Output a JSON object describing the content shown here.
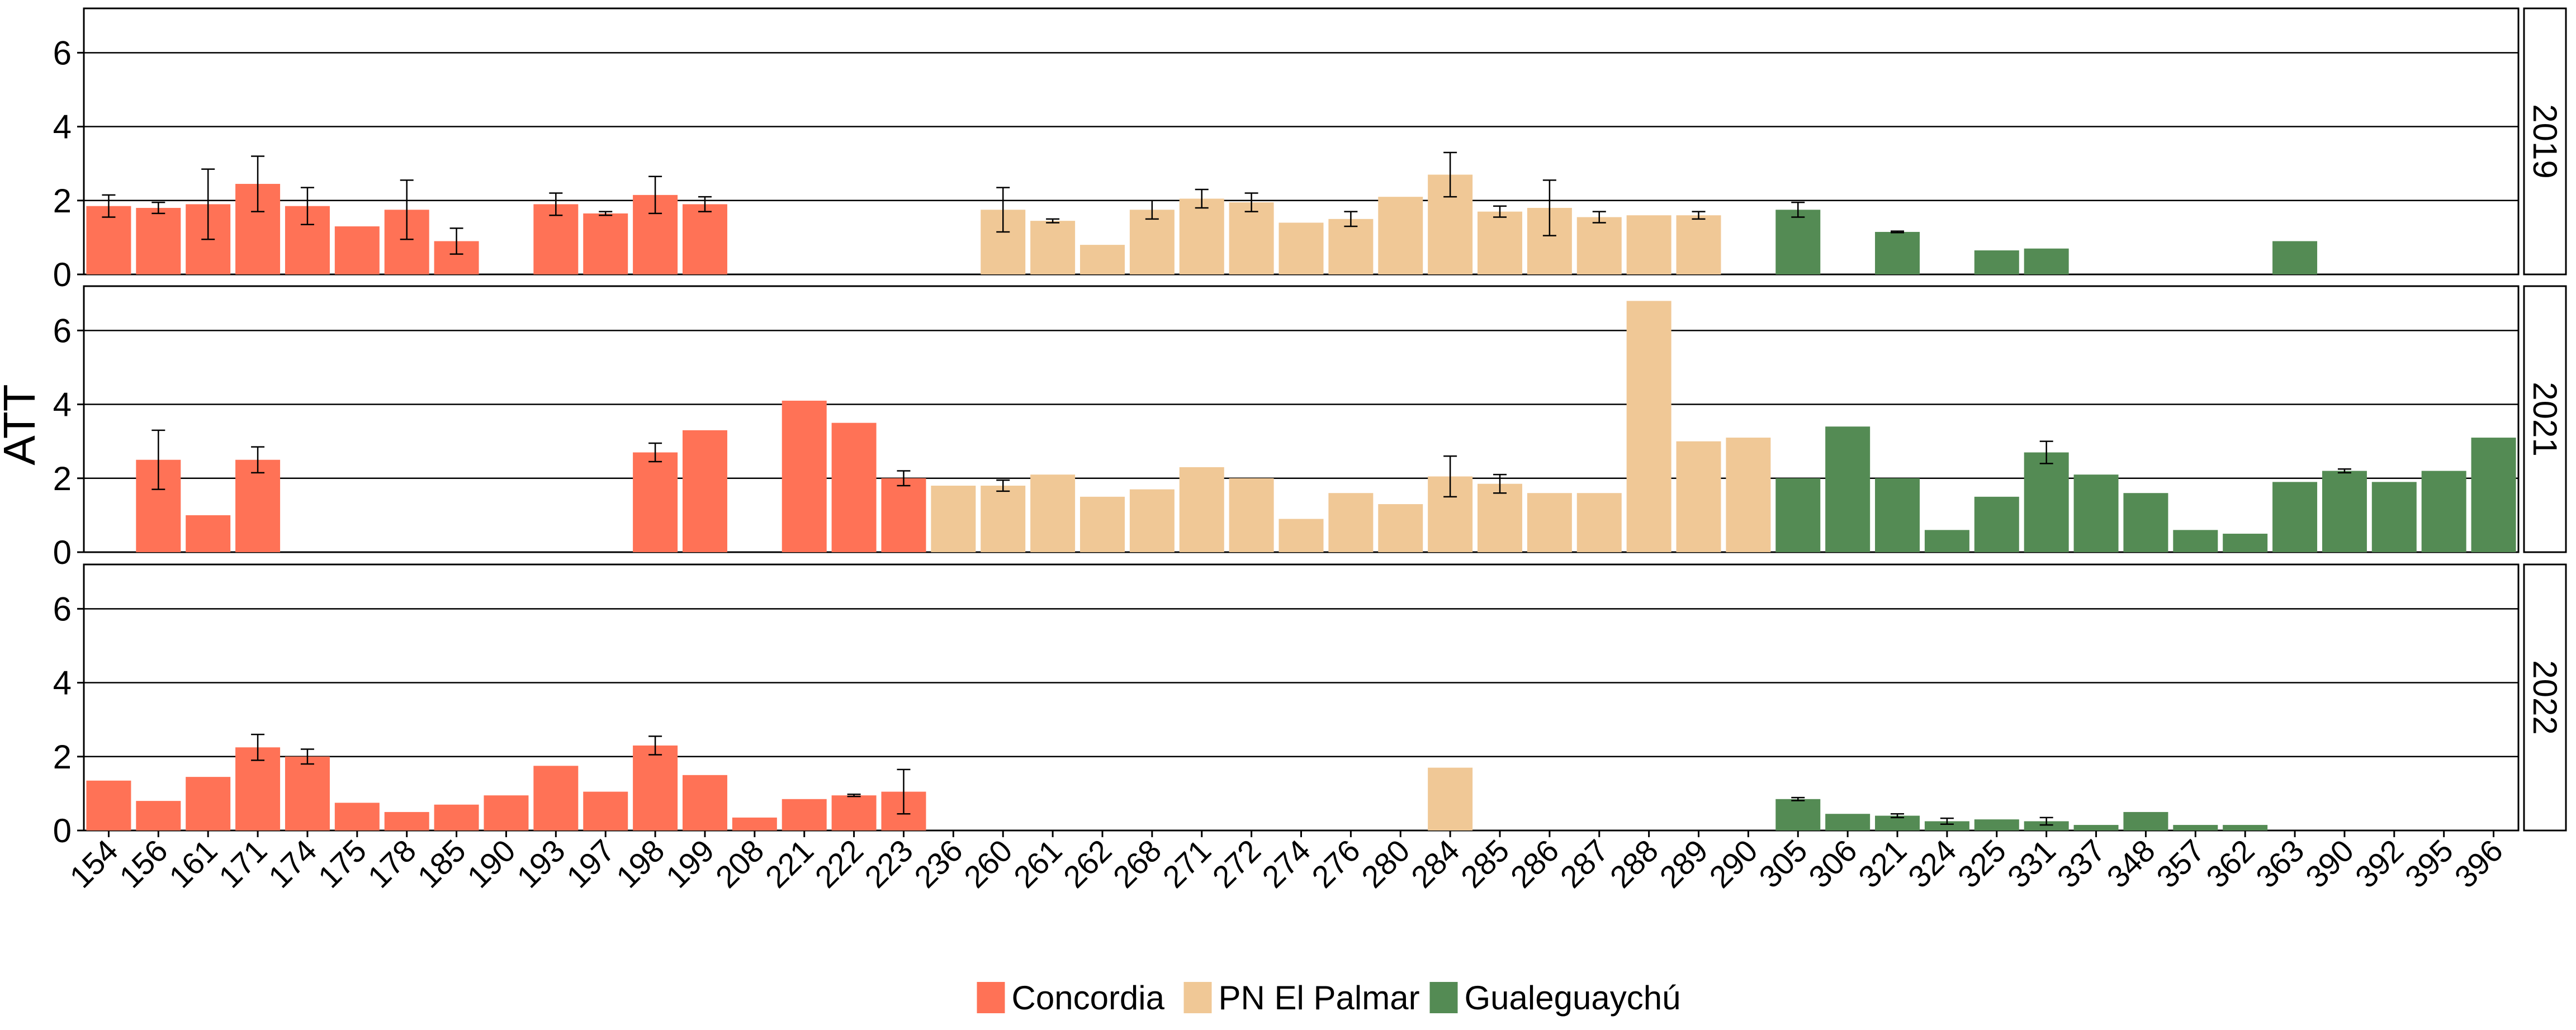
{
  "chart_data": {
    "type": "bar",
    "ylabel": "ATT",
    "xlabel": "",
    "ylim": [
      0,
      7.2
    ],
    "yticks": [
      0,
      2,
      4,
      6
    ],
    "grid": "horizontal",
    "legend_position": "bottom",
    "categories": [
      "154",
      "156",
      "161",
      "171",
      "174",
      "175",
      "178",
      "185",
      "190",
      "193",
      "197",
      "198",
      "199",
      "208",
      "221",
      "222",
      "223",
      "236",
      "260",
      "261",
      "262",
      "268",
      "271",
      "272",
      "274",
      "276",
      "280",
      "284",
      "285",
      "286",
      "287",
      "288",
      "289",
      "290",
      "305",
      "306",
      "321",
      "324",
      "325",
      "331",
      "337",
      "348",
      "357",
      "362",
      "363",
      "390",
      "392",
      "395",
      "396"
    ],
    "series": [
      {
        "name": "Concordia",
        "color": "#FF7256"
      },
      {
        "name": "PN El Palmar",
        "color": "#F0C896"
      },
      {
        "name": "Gualeguaychú",
        "color": "#548B54"
      }
    ],
    "panels": [
      {
        "label": "2019",
        "bars": [
          {
            "x": "154",
            "series": 0,
            "y": 1.85,
            "err": 0.3
          },
          {
            "x": "156",
            "series": 0,
            "y": 1.8,
            "err": 0.15
          },
          {
            "x": "161",
            "series": 0,
            "y": 1.9,
            "err": 0.95
          },
          {
            "x": "171",
            "series": 0,
            "y": 2.45,
            "err": 0.75
          },
          {
            "x": "174",
            "series": 0,
            "y": 1.85,
            "err": 0.5
          },
          {
            "x": "175",
            "series": 0,
            "y": 1.3
          },
          {
            "x": "178",
            "series": 0,
            "y": 1.75,
            "err": 0.8
          },
          {
            "x": "185",
            "series": 0,
            "y": 0.9,
            "err": 0.35
          },
          {
            "x": "193",
            "series": 0,
            "y": 1.9,
            "err": 0.3
          },
          {
            "x": "197",
            "series": 0,
            "y": 1.65,
            "err": 0.05
          },
          {
            "x": "198",
            "series": 0,
            "y": 2.15,
            "err": 0.5
          },
          {
            "x": "199",
            "series": 0,
            "y": 1.9,
            "err": 0.2
          },
          {
            "x": "260",
            "series": 1,
            "y": 1.75,
            "err": 0.6
          },
          {
            "x": "261",
            "series": 1,
            "y": 1.45,
            "err": 0.05
          },
          {
            "x": "262",
            "series": 1,
            "y": 0.8
          },
          {
            "x": "268",
            "series": 1,
            "y": 1.75,
            "err": 0.25
          },
          {
            "x": "271",
            "series": 1,
            "y": 2.05,
            "err": 0.25
          },
          {
            "x": "272",
            "series": 1,
            "y": 1.95,
            "err": 0.25
          },
          {
            "x": "274",
            "series": 1,
            "y": 1.4
          },
          {
            "x": "276",
            "series": 1,
            "y": 1.5,
            "err": 0.2
          },
          {
            "x": "280",
            "series": 1,
            "y": 2.1
          },
          {
            "x": "284",
            "series": 1,
            "y": 2.7,
            "err": 0.6
          },
          {
            "x": "285",
            "series": 1,
            "y": 1.7,
            "err": 0.15
          },
          {
            "x": "286",
            "series": 1,
            "y": 1.8,
            "err": 0.75
          },
          {
            "x": "287",
            "series": 1,
            "y": 1.55,
            "err": 0.15
          },
          {
            "x": "288",
            "series": 1,
            "y": 1.6
          },
          {
            "x": "289",
            "series": 1,
            "y": 1.6,
            "err": 0.1
          },
          {
            "x": "305",
            "series": 2,
            "y": 1.75,
            "err": 0.2
          },
          {
            "x": "321",
            "series": 2,
            "y": 1.15,
            "err": 0.02
          },
          {
            "x": "325",
            "series": 2,
            "y": 0.65
          },
          {
            "x": "331",
            "series": 2,
            "y": 0.7
          },
          {
            "x": "363",
            "series": 2,
            "y": 0.9
          }
        ]
      },
      {
        "label": "2021",
        "bars": [
          {
            "x": "156",
            "series": 0,
            "y": 2.5,
            "err": 0.8
          },
          {
            "x": "161",
            "series": 0,
            "y": 1.0
          },
          {
            "x": "171",
            "series": 0,
            "y": 2.5,
            "err": 0.35
          },
          {
            "x": "198",
            "series": 0,
            "y": 2.7,
            "err": 0.25
          },
          {
            "x": "199",
            "series": 0,
            "y": 3.3
          },
          {
            "x": "221",
            "series": 0,
            "y": 4.1
          },
          {
            "x": "222",
            "series": 0,
            "y": 3.5
          },
          {
            "x": "223",
            "series": 0,
            "y": 2.0,
            "err": 0.2
          },
          {
            "x": "236",
            "series": 1,
            "y": 1.8
          },
          {
            "x": "260",
            "series": 1,
            "y": 1.8,
            "err": 0.15
          },
          {
            "x": "261",
            "series": 1,
            "y": 2.1
          },
          {
            "x": "262",
            "series": 1,
            "y": 1.5
          },
          {
            "x": "268",
            "series": 1,
            "y": 1.7
          },
          {
            "x": "271",
            "series": 1,
            "y": 2.3
          },
          {
            "x": "272",
            "series": 1,
            "y": 2.0
          },
          {
            "x": "274",
            "series": 1,
            "y": 0.9
          },
          {
            "x": "276",
            "series": 1,
            "y": 1.6
          },
          {
            "x": "280",
            "series": 1,
            "y": 1.3
          },
          {
            "x": "284",
            "series": 1,
            "y": 2.05,
            "err": 0.55
          },
          {
            "x": "285",
            "series": 1,
            "y": 1.85,
            "err": 0.25
          },
          {
            "x": "286",
            "series": 1,
            "y": 1.6
          },
          {
            "x": "287",
            "series": 1,
            "y": 1.6
          },
          {
            "x": "288",
            "series": 1,
            "y": 6.8
          },
          {
            "x": "289",
            "series": 1,
            "y": 3.0
          },
          {
            "x": "290",
            "series": 1,
            "y": 3.1
          },
          {
            "x": "305",
            "series": 2,
            "y": 2.0
          },
          {
            "x": "306",
            "series": 2,
            "y": 3.4
          },
          {
            "x": "321",
            "series": 2,
            "y": 2.0
          },
          {
            "x": "324",
            "series": 2,
            "y": 0.6
          },
          {
            "x": "325",
            "series": 2,
            "y": 1.5
          },
          {
            "x": "331",
            "series": 2,
            "y": 2.7,
            "err": 0.3
          },
          {
            "x": "337",
            "series": 2,
            "y": 2.1
          },
          {
            "x": "348",
            "series": 2,
            "y": 1.6
          },
          {
            "x": "357",
            "series": 2,
            "y": 0.6
          },
          {
            "x": "362",
            "series": 2,
            "y": 0.5
          },
          {
            "x": "363",
            "series": 2,
            "y": 1.9
          },
          {
            "x": "390",
            "series": 2,
            "y": 2.2,
            "err": 0.05
          },
          {
            "x": "392",
            "series": 2,
            "y": 1.9
          },
          {
            "x": "395",
            "series": 2,
            "y": 2.2
          },
          {
            "x": "396",
            "series": 2,
            "y": 3.1
          }
        ]
      },
      {
        "label": "2022",
        "bars": [
          {
            "x": "154",
            "series": 0,
            "y": 1.35
          },
          {
            "x": "156",
            "series": 0,
            "y": 0.8
          },
          {
            "x": "161",
            "series": 0,
            "y": 1.45
          },
          {
            "x": "171",
            "series": 0,
            "y": 2.25,
            "err": 0.35
          },
          {
            "x": "174",
            "series": 0,
            "y": 2.0,
            "err": 0.2
          },
          {
            "x": "175",
            "series": 0,
            "y": 0.75
          },
          {
            "x": "178",
            "series": 0,
            "y": 0.5
          },
          {
            "x": "185",
            "series": 0,
            "y": 0.7
          },
          {
            "x": "190",
            "series": 0,
            "y": 0.95
          },
          {
            "x": "193",
            "series": 0,
            "y": 1.75
          },
          {
            "x": "197",
            "series": 0,
            "y": 1.05
          },
          {
            "x": "198",
            "series": 0,
            "y": 2.3,
            "err": 0.25
          },
          {
            "x": "199",
            "series": 0,
            "y": 1.5
          },
          {
            "x": "208",
            "series": 0,
            "y": 0.35
          },
          {
            "x": "221",
            "series": 0,
            "y": 0.85
          },
          {
            "x": "222",
            "series": 0,
            "y": 0.95,
            "err": 0.03
          },
          {
            "x": "223",
            "series": 0,
            "y": 1.05,
            "err": 0.6
          },
          {
            "x": "284",
            "series": 1,
            "y": 1.7
          },
          {
            "x": "305",
            "series": 2,
            "y": 0.85,
            "err": 0.04
          },
          {
            "x": "306",
            "series": 2,
            "y": 0.45
          },
          {
            "x": "321",
            "series": 2,
            "y": 0.4,
            "err": 0.05
          },
          {
            "x": "324",
            "series": 2,
            "y": 0.25,
            "err": 0.08
          },
          {
            "x": "325",
            "series": 2,
            "y": 0.3
          },
          {
            "x": "331",
            "series": 2,
            "y": 0.25,
            "err": 0.1
          },
          {
            "x": "337",
            "series": 2,
            "y": 0.15
          },
          {
            "x": "348",
            "series": 2,
            "y": 0.5
          },
          {
            "x": "357",
            "series": 2,
            "y": 0.15
          },
          {
            "x": "362",
            "series": 2,
            "y": 0.15
          }
        ]
      }
    ]
  }
}
